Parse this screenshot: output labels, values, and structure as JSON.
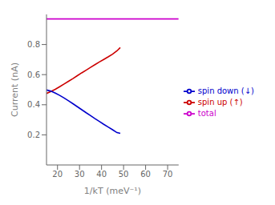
{
  "chart_data": {
    "type": "line",
    "xlabel": "1/kT (meV⁻¹)",
    "ylabel": "Current (nA)",
    "xlim": [
      15,
      75
    ],
    "ylim": [
      0,
      1.0
    ],
    "xticks": [
      20,
      30,
      40,
      50,
      60,
      70
    ],
    "yticks": [
      0.2,
      0.4,
      0.6,
      0.8
    ],
    "grid": false,
    "legend": "right",
    "series": [
      {
        "name": "spin up (↑)",
        "color": "#cc0000",
        "x": [
          15,
          17,
          19,
          21,
          23,
          25,
          27,
          29,
          31,
          33,
          35,
          37,
          39,
          41,
          43,
          45,
          47,
          48.5
        ],
        "values": [
          0.475,
          0.488,
          0.503,
          0.52,
          0.538,
          0.556,
          0.574,
          0.593,
          0.612,
          0.63,
          0.648,
          0.666,
          0.684,
          0.701,
          0.718,
          0.736,
          0.758,
          0.78
        ]
      },
      {
        "name": "spin down (↓)",
        "color": "#0000cc",
        "x": [
          15,
          17,
          19,
          21,
          23,
          25,
          27,
          29,
          31,
          33,
          35,
          37,
          39,
          41,
          43,
          45,
          47,
          48.5
        ],
        "values": [
          0.498,
          0.49,
          0.477,
          0.462,
          0.445,
          0.426,
          0.407,
          0.387,
          0.367,
          0.347,
          0.328,
          0.308,
          0.289,
          0.27,
          0.252,
          0.234,
          0.215,
          0.21
        ]
      },
      {
        "name": "total",
        "color": "#cc00cc",
        "x": [
          15,
          20,
          25,
          30,
          35,
          40,
          45,
          50,
          55,
          60,
          65,
          70,
          75
        ],
        "values": [
          0.97,
          0.97,
          0.97,
          0.97,
          0.97,
          0.97,
          0.97,
          0.97,
          0.97,
          0.97,
          0.97,
          0.97,
          0.97
        ]
      }
    ]
  }
}
